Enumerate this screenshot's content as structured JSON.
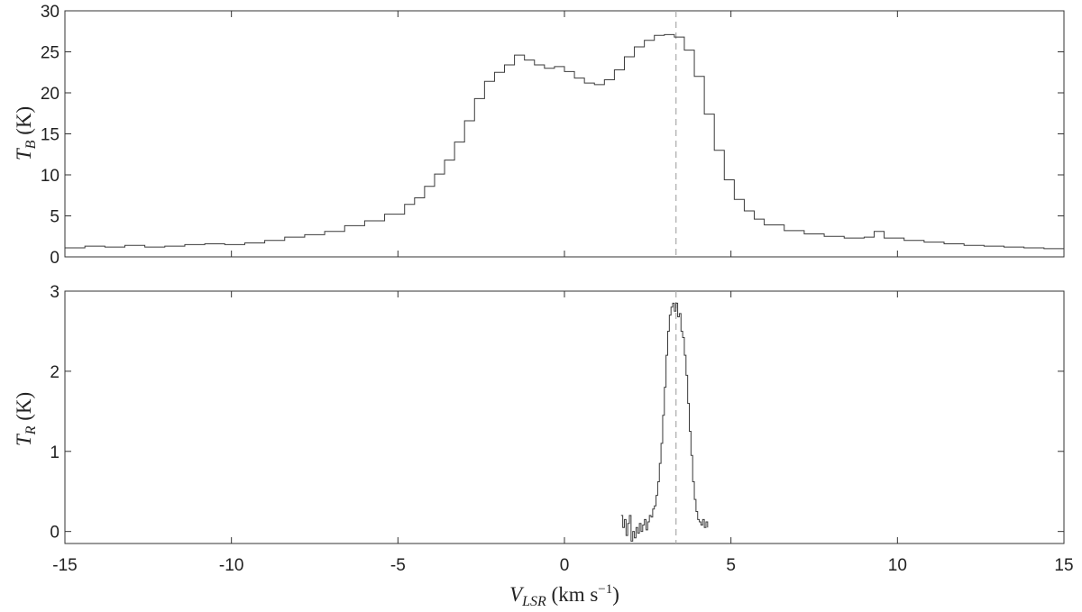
{
  "chart_data": [
    {
      "type": "line",
      "step": true,
      "series": [
        {
          "x": [
            -15,
            -14.4,
            -13.8,
            -13.2,
            -12.6,
            -12,
            -11.4,
            -10.8,
            -10.2,
            -9.6,
            -9,
            -8.4,
            -7.8,
            -7.2,
            -6.6,
            -6,
            -5.4,
            -4.8,
            -4.5,
            -4.2,
            -3.9,
            -3.6,
            -3.3,
            -3,
            -2.7,
            -2.4,
            -2.1,
            -1.8,
            -1.5,
            -1.2,
            -0.9,
            -0.6,
            -0.3,
            0,
            0.3,
            0.6,
            0.9,
            1.2,
            1.5,
            1.8,
            2.1,
            2.4,
            2.7,
            3,
            3.3,
            3.6,
            3.9,
            4.2,
            4.5,
            4.8,
            5.1,
            5.4,
            5.7,
            6,
            6.6,
            7.2,
            7.8,
            8.4,
            9,
            9.3,
            9.6,
            10.2,
            10.8,
            11.4,
            12,
            12.6,
            13.2,
            13.8,
            14.4,
            15
          ],
          "y": [
            1.1,
            1.3,
            1.2,
            1.4,
            1.2,
            1.3,
            1.5,
            1.6,
            1.5,
            1.7,
            2,
            2.4,
            2.7,
            3.1,
            3.8,
            4.4,
            5.2,
            6.4,
            7.2,
            8.6,
            10.1,
            11.8,
            14,
            16.6,
            19.3,
            21.4,
            22.5,
            23.4,
            24.6,
            24,
            23.4,
            23,
            23.2,
            22.6,
            21.8,
            21.2,
            21,
            21.6,
            22.8,
            24.4,
            25.6,
            26.4,
            27,
            27.1,
            26.8,
            25.2,
            22,
            17.4,
            13,
            9.4,
            7,
            5.6,
            4.6,
            3.9,
            3.2,
            2.8,
            2.5,
            2.3,
            2.4,
            3.1,
            2.3,
            2,
            1.8,
            1.6,
            1.4,
            1.3,
            1.2,
            1.1,
            1,
            1
          ]
        }
      ],
      "xlim": [
        -15,
        15
      ],
      "ylim": [
        0,
        30
      ],
      "yticks": [
        0,
        5,
        10,
        15,
        20,
        25,
        30
      ],
      "ylabel": "T_B (K)",
      "ylabel_main": "T",
      "ylabel_sub": "B",
      "ylabel_unit": " (K)",
      "vline_x": 3.35,
      "grid": false
    },
    {
      "type": "line",
      "step": true,
      "series": [
        {
          "x": [
            1.7,
            1.75,
            1.8,
            1.85,
            1.9,
            1.95,
            2,
            2.05,
            2.1,
            2.15,
            2.2,
            2.25,
            2.3,
            2.35,
            2.4,
            2.45,
            2.5,
            2.55,
            2.6,
            2.65,
            2.7,
            2.75,
            2.8,
            2.85,
            2.9,
            2.95,
            3,
            3.05,
            3.1,
            3.15,
            3.2,
            3.25,
            3.3,
            3.35,
            3.4,
            3.45,
            3.5,
            3.55,
            3.6,
            3.65,
            3.7,
            3.75,
            3.8,
            3.85,
            3.9,
            3.95,
            4,
            4.05,
            4.1,
            4.15,
            4.2,
            4.25,
            4.3
          ],
          "y": [
            0.2,
            0.05,
            0.15,
            -0.05,
            0.1,
            0.2,
            -0.12,
            0,
            -0.08,
            0.05,
            -0.02,
            0.1,
            0,
            0.08,
            0.15,
            0.02,
            0.12,
            0.2,
            0.18,
            0.28,
            0.32,
            0.45,
            0.62,
            0.85,
            1.1,
            1.45,
            1.8,
            2.2,
            2.5,
            2.7,
            2.8,
            2.85,
            2.75,
            2.85,
            2.68,
            2.72,
            2.5,
            2.42,
            2.2,
            1.95,
            1.6,
            1.25,
            0.95,
            0.62,
            0.4,
            0.25,
            0.15,
            0.12,
            0.08,
            0.15,
            0.05,
            0.12,
            0.05
          ]
        }
      ],
      "xlim": [
        -15,
        15
      ],
      "ylim": [
        -0.15,
        3
      ],
      "yticks": [
        0,
        1,
        2,
        3
      ],
      "xticks": [
        -15,
        -10,
        -5,
        0,
        5,
        10,
        15
      ],
      "ylabel": "T_R (K)",
      "ylabel_main": "T",
      "ylabel_sub": "R",
      "ylabel_unit": " (K)",
      "xlabel": "V_LSR (km s^-1)",
      "xlabel_main": "V",
      "xlabel_sub": "LSR",
      "xlabel_unit": " (km s",
      "xlabel_sup": "−1",
      "xlabel_close": ")",
      "vline_x": 3.35,
      "grid": false
    }
  ]
}
